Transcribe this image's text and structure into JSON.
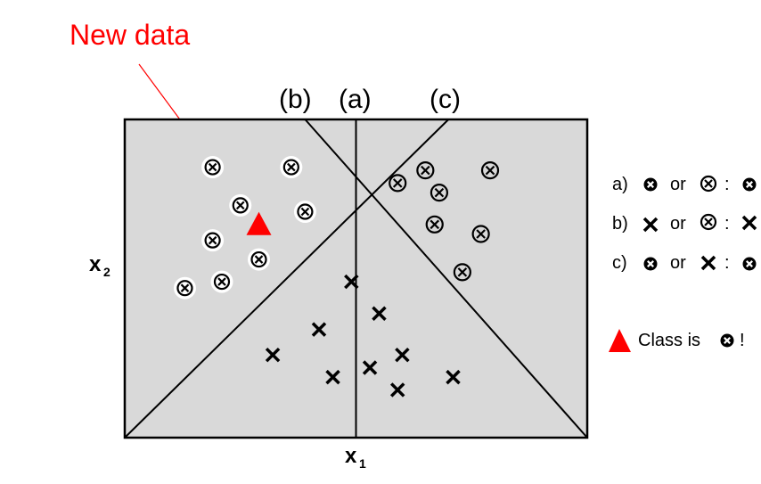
{
  "title": "New data",
  "boundary_labels": {
    "b": "(b)",
    "a": "(a)",
    "c": "(c)"
  },
  "axis": {
    "x1_main": "x",
    "x1_sub": "1",
    "x2_main": "x",
    "x2_sub": "2"
  },
  "legend": {
    "a": {
      "prefix": "a)",
      "mid": "or",
      "sep": ":"
    },
    "b": {
      "prefix": "b)",
      "mid": "or",
      "sep": ":"
    },
    "c": {
      "prefix": "c)",
      "mid": "or",
      "sep": ":"
    },
    "conclusion": {
      "text": "Class is",
      "suffix": "!"
    }
  },
  "colors": {
    "highlight": "#ff0000",
    "region_fill": "#d9d9d9",
    "line": "#000000"
  },
  "chart_data": {
    "type": "scatter",
    "xlim": [
      0,
      100
    ],
    "ylim": [
      0,
      100
    ],
    "series": [
      {
        "marker": "circle-cross-white",
        "points": [
          [
            19,
            85
          ],
          [
            36,
            85
          ],
          [
            25,
            73
          ],
          [
            39,
            71
          ],
          [
            19,
            62
          ],
          [
            13,
            47
          ],
          [
            21,
            49
          ],
          [
            29,
            56
          ]
        ]
      },
      {
        "marker": "circle-cross-gray",
        "points": [
          [
            59,
            80
          ],
          [
            65,
            84
          ],
          [
            68,
            77
          ],
          [
            79,
            84
          ],
          [
            67,
            67
          ],
          [
            77,
            64
          ],
          [
            73,
            52
          ]
        ]
      },
      {
        "marker": "x",
        "points": [
          [
            49,
            49
          ],
          [
            55,
            39
          ],
          [
            42,
            34
          ],
          [
            32,
            26
          ],
          [
            45,
            19
          ],
          [
            53,
            22
          ],
          [
            60,
            26
          ],
          [
            59,
            15
          ],
          [
            71,
            19
          ]
        ]
      }
    ],
    "new_point": [
      29,
      67
    ],
    "boundaries": [
      {
        "name": "(a)",
        "from": [
          50,
          100
        ],
        "to": [
          50,
          0
        ]
      },
      {
        "name": "(b)",
        "from": [
          39,
          100
        ],
        "to": [
          100,
          0
        ]
      },
      {
        "name": "(c)",
        "from": [
          70,
          100
        ],
        "to": [
          0,
          0
        ]
      }
    ]
  }
}
